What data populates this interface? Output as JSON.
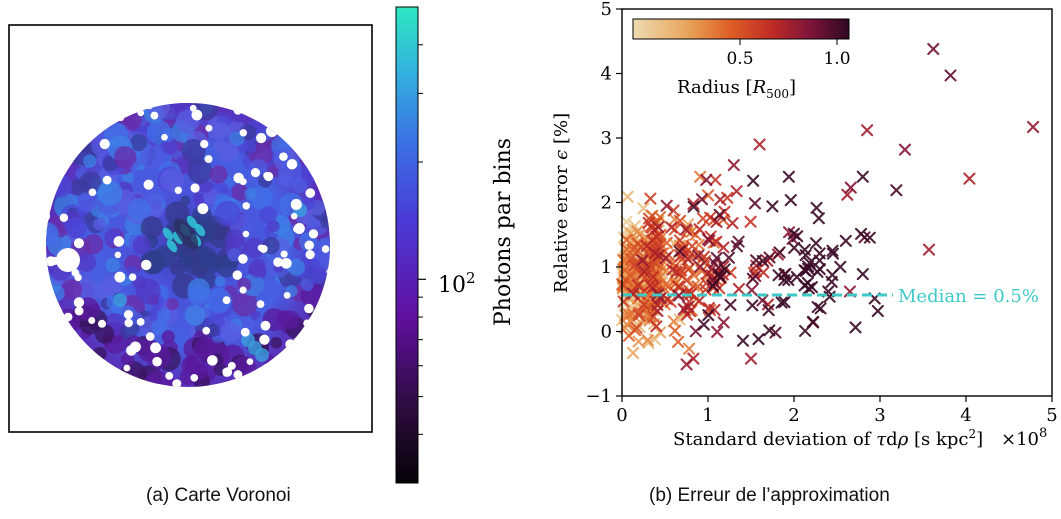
{
  "captions": {
    "a": "(a) Carte Voronoi",
    "b": "(b) Erreur de l’approximation"
  },
  "colors": {
    "background": "#ffffff",
    "median_line": "#3ec8c8",
    "map_colormap": [
      "#0a0612",
      "#3a1050",
      "#5b0fa8",
      "#4a3ad8",
      "#3f6fe6",
      "#3aa6e0",
      "#2ee6c0"
    ],
    "radius_colormap": [
      "#eed9ae",
      "#e8a860",
      "#e06428",
      "#c02a24",
      "#8a1636",
      "#3a0a26"
    ]
  },
  "chart_data": [
    {
      "type": "heatmap",
      "title": "",
      "colorbar": {
        "label": "Photons par bins",
        "scale": "log",
        "tick_labels": [
          "10^2"
        ],
        "major_ticks": [
          100
        ],
        "minor_ticks": [
          40,
          50,
          60,
          70,
          80,
          90,
          200,
          300,
          400
        ],
        "range": [
          30,
          500
        ]
      },
      "grid": false,
      "notes": "circular Voronoi-binned count map with masked point sources"
    },
    {
      "type": "scatter",
      "title": "",
      "xlabel": "Standard deviation of τdρ [s kpc²]",
      "x_multiplier": "×10^8",
      "ylabel": "Relative error ε [%]",
      "xlim": [
        0,
        5
      ],
      "ylim": [
        -1,
        5
      ],
      "xticks": [
        0,
        1,
        2,
        3,
        4,
        5
      ],
      "yticks": [
        -1,
        0,
        1,
        2,
        3,
        4,
        5
      ],
      "marker": "x",
      "grid": false,
      "colorbar": {
        "label": "Radius [R500]",
        "range": [
          0,
          1.05
        ],
        "ticks": [
          0.5,
          1.0
        ],
        "tick_labels": [
          "0.5",
          "1.0"
        ],
        "placement": "top-left"
      },
      "median": {
        "value": 0.5,
        "label": "Median = 0.5%",
        "x_range": [
          0,
          3.15
        ]
      },
      "highlight_points": [
        {
          "x": 3.62,
          "y": 4.38,
          "r": 0.9
        },
        {
          "x": 3.82,
          "y": 3.97,
          "r": 0.95
        },
        {
          "x": 4.78,
          "y": 3.17,
          "r": 0.8
        },
        {
          "x": 2.85,
          "y": 3.12,
          "r": 0.75
        },
        {
          "x": 3.29,
          "y": 2.82,
          "r": 0.85
        },
        {
          "x": 4.04,
          "y": 2.37,
          "r": 0.7
        },
        {
          "x": 3.19,
          "y": 2.19,
          "r": 1.0
        },
        {
          "x": 3.57,
          "y": 1.27,
          "r": 0.75
        },
        {
          "x": 1.6,
          "y": 2.9,
          "r": 0.7
        },
        {
          "x": 1.3,
          "y": 2.58,
          "r": 0.8
        },
        {
          "x": 2.66,
          "y": 2.23,
          "r": 0.85
        },
        {
          "x": 2.62,
          "y": 2.12,
          "r": 0.75
        },
        {
          "x": 2.82,
          "y": 1.46,
          "r": 0.95
        },
        {
          "x": 2.65,
          "y": 0.62,
          "r": 0.8
        },
        {
          "x": 1.5,
          "y": -0.42,
          "r": 0.75
        },
        {
          "x": 0.83,
          "y": -0.42,
          "r": 0.7
        },
        {
          "x": 0.98,
          "y": 2.35,
          "r": 0.85
        },
        {
          "x": 0.93,
          "y": 2.05,
          "r": 0.9
        },
        {
          "x": 0.52,
          "y": 1.95,
          "r": 0.8
        },
        {
          "x": 0.33,
          "y": 2.06,
          "r": 0.55
        }
      ],
      "cloud_description": "about 600 points densest at x<0.5, y between -0.3 and 1.6, colour from light (small radius) near x=0 to dark (large radius) at larger x"
    }
  ]
}
